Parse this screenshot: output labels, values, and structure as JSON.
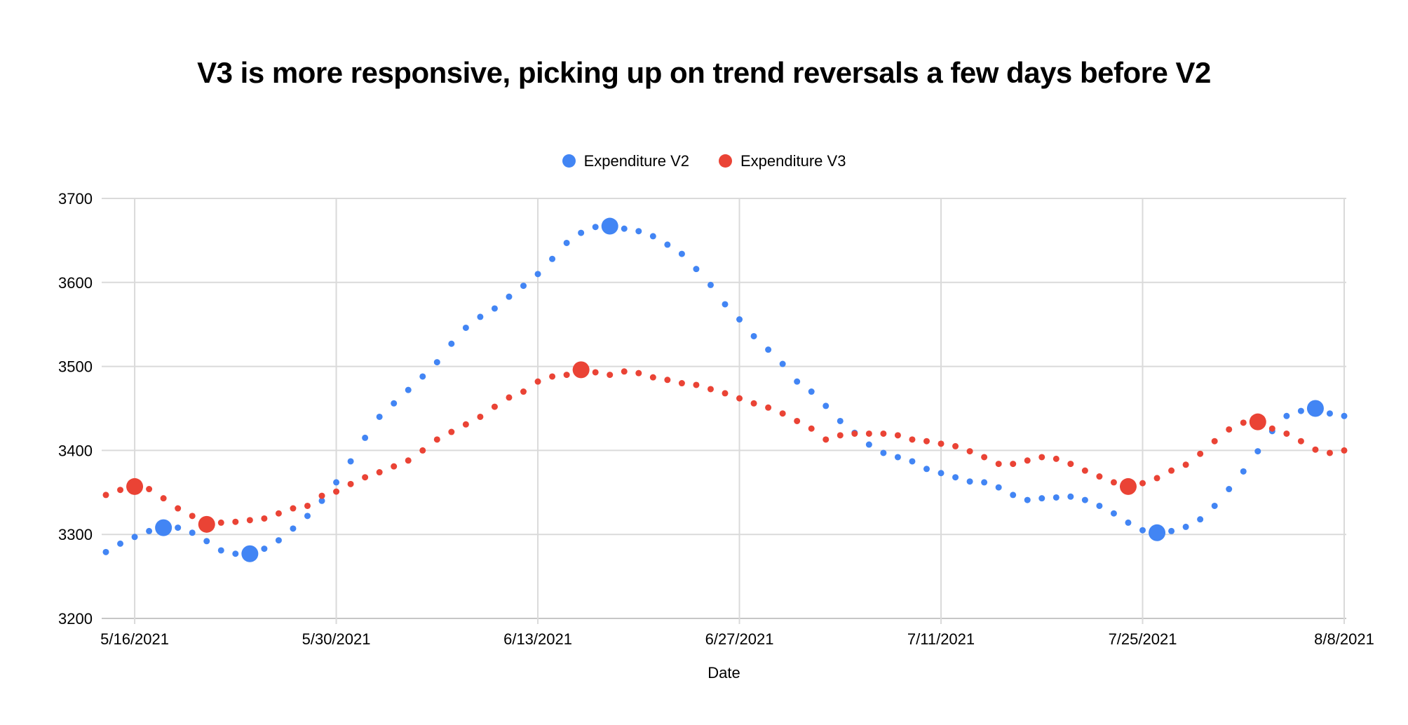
{
  "title": "V3 is more responsive, picking up on trend reversals a few days before V2",
  "legend": [
    {
      "label": "Expenditure V2",
      "color": "#4285F4"
    },
    {
      "label": "Expenditure V3",
      "color": "#EA4335"
    }
  ],
  "axis": {
    "x_title": "Date"
  },
  "colors": {
    "series_v2": "#4285F4",
    "series_v3": "#EA4335",
    "gridline": "#DADADA",
    "axis_line": "#C6C6C6",
    "tick_text": "#000000",
    "background": "#ffffff"
  },
  "chart_data": {
    "type": "scatter",
    "title": "V3 is more responsive, picking up on trend reversals a few days before V2",
    "xlabel": "Date",
    "ylabel": "",
    "ylim": [
      3200,
      3700
    ],
    "grid": true,
    "legend_position": "top",
    "y_ticks": [
      3200,
      3300,
      3400,
      3500,
      3600,
      3700
    ],
    "x_tick_labels": [
      "5/16/2021",
      "5/30/2021",
      "6/13/2021",
      "6/27/2021",
      "7/11/2021",
      "7/25/2021",
      "8/8/2021"
    ],
    "x_tick_indices": [
      2,
      16,
      30,
      44,
      58,
      72,
      86
    ],
    "categories": [
      "5/14/2021",
      "5/15/2021",
      "5/16/2021",
      "5/17/2021",
      "5/18/2021",
      "5/19/2021",
      "5/20/2021",
      "5/21/2021",
      "5/22/2021",
      "5/23/2021",
      "5/24/2021",
      "5/25/2021",
      "5/26/2021",
      "5/27/2021",
      "5/28/2021",
      "5/29/2021",
      "5/30/2021",
      "5/31/2021",
      "6/1/2021",
      "6/2/2021",
      "6/3/2021",
      "6/4/2021",
      "6/5/2021",
      "6/6/2021",
      "6/7/2021",
      "6/8/2021",
      "6/9/2021",
      "6/10/2021",
      "6/11/2021",
      "6/12/2021",
      "6/13/2021",
      "6/14/2021",
      "6/15/2021",
      "6/16/2021",
      "6/17/2021",
      "6/18/2021",
      "6/19/2021",
      "6/20/2021",
      "6/21/2021",
      "6/22/2021",
      "6/23/2021",
      "6/24/2021",
      "6/25/2021",
      "6/26/2021",
      "6/27/2021",
      "6/28/2021",
      "6/29/2021",
      "6/30/2021",
      "7/1/2021",
      "7/2/2021",
      "7/3/2021",
      "7/4/2021",
      "7/5/2021",
      "7/6/2021",
      "7/7/2021",
      "7/8/2021",
      "7/9/2021",
      "7/10/2021",
      "7/11/2021",
      "7/12/2021",
      "7/13/2021",
      "7/14/2021",
      "7/15/2021",
      "7/16/2021",
      "7/17/2021",
      "7/18/2021",
      "7/19/2021",
      "7/20/2021",
      "7/21/2021",
      "7/22/2021",
      "7/23/2021",
      "7/24/2021",
      "7/25/2021",
      "7/26/2021",
      "7/27/2021",
      "7/28/2021",
      "7/29/2021",
      "7/30/2021",
      "7/31/2021",
      "8/1/2021",
      "8/2/2021",
      "8/3/2021",
      "8/4/2021",
      "8/5/2021",
      "8/6/2021",
      "8/7/2021",
      "8/8/2021"
    ],
    "series": [
      {
        "name": "Expenditure V2",
        "color": "#4285F4",
        "values": [
          3279,
          3289,
          3297,
          3304,
          3308,
          3308,
          3302,
          3292,
          3281,
          3277,
          3277,
          3283,
          3293,
          3307,
          3322,
          3340,
          3362,
          3387,
          3415,
          3440,
          3456,
          3472,
          3488,
          3505,
          3527,
          3546,
          3559,
          3569,
          3583,
          3596,
          3610,
          3628,
          3647,
          3659,
          3666,
          3667,
          3664,
          3661,
          3655,
          3645,
          3634,
          3616,
          3597,
          3574,
          3556,
          3536,
          3520,
          3503,
          3482,
          3470,
          3453,
          3435,
          3421,
          3407,
          3397,
          3392,
          3387,
          3378,
          3373,
          3368,
          3363,
          3362,
          3356,
          3347,
          3341,
          3343,
          3344,
          3345,
          3341,
          3334,
          3325,
          3314,
          3305,
          3302,
          3304,
          3309,
          3318,
          3334,
          3354,
          3375,
          3399,
          3423,
          3441,
          3447,
          3450,
          3444,
          3441
        ],
        "highlight_indices": [
          4,
          10,
          35,
          73,
          84
        ]
      },
      {
        "name": "Expenditure V3",
        "color": "#EA4335",
        "values": [
          3347,
          3353,
          3357,
          3354,
          3343,
          3331,
          3322,
          3312,
          3314,
          3315,
          3317,
          3319,
          3325,
          3331,
          3334,
          3346,
          3351,
          3360,
          3368,
          3374,
          3381,
          3388,
          3400,
          3413,
          3422,
          3431,
          3440,
          3452,
          3463,
          3470,
          3482,
          3488,
          3490,
          3496,
          3493,
          3490,
          3494,
          3492,
          3487,
          3484,
          3480,
          3478,
          3473,
          3468,
          3462,
          3456,
          3451,
          3444,
          3435,
          3426,
          3413,
          3418,
          3420,
          3420,
          3420,
          3418,
          3413,
          3411,
          3408,
          3405,
          3399,
          3392,
          3384,
          3384,
          3388,
          3392,
          3390,
          3384,
          3376,
          3369,
          3362,
          3357,
          3361,
          3367,
          3376,
          3383,
          3396,
          3411,
          3425,
          3433,
          3434,
          3426,
          3420,
          3411,
          3401,
          3397,
          3400
        ],
        "highlight_indices": [
          2,
          7,
          33,
          71,
          80
        ]
      }
    ]
  }
}
